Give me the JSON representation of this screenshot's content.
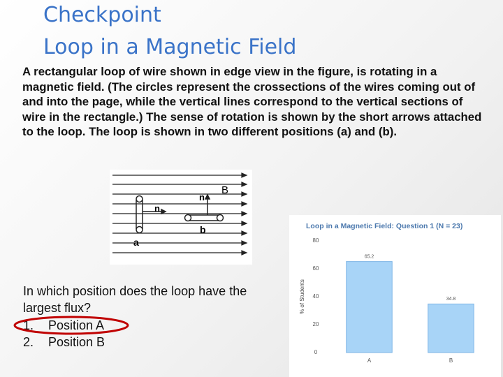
{
  "title": [
    "Checkpoint",
    "Loop in a Magnetic Field"
  ],
  "body": "A rectangular loop of wire shown in edge view in the figure, is rotating in a magnetic field. (The circles represent the crossections of the wires coming out of and into the page, while the vertical lines correspond to the vertical sections of wire in the rectangle.) The sense of rotation is shown by the short arrows attached to the loop. The loop is shown in two different positions (a) and (b).",
  "figure": {
    "labels": [
      "B",
      "n",
      "n",
      "a",
      "b"
    ]
  },
  "question": "In which position does the loop have the largest flux?",
  "options": [
    {
      "number": "1.",
      "text": "Position A"
    },
    {
      "number": "2.",
      "text": "Position B"
    }
  ],
  "chart_data": {
    "type": "bar",
    "title": "Loop in a Magnetic Field: Question 1 (N = 23)",
    "y_label": "% of Students",
    "categories": [
      "A",
      "B"
    ],
    "values": [
      65.2,
      34.8
    ],
    "color": "#a8d4f7",
    "ylim": [
      0,
      80
    ],
    "yticks": [
      0,
      20,
      40,
      60,
      80
    ],
    "grid": false
  }
}
